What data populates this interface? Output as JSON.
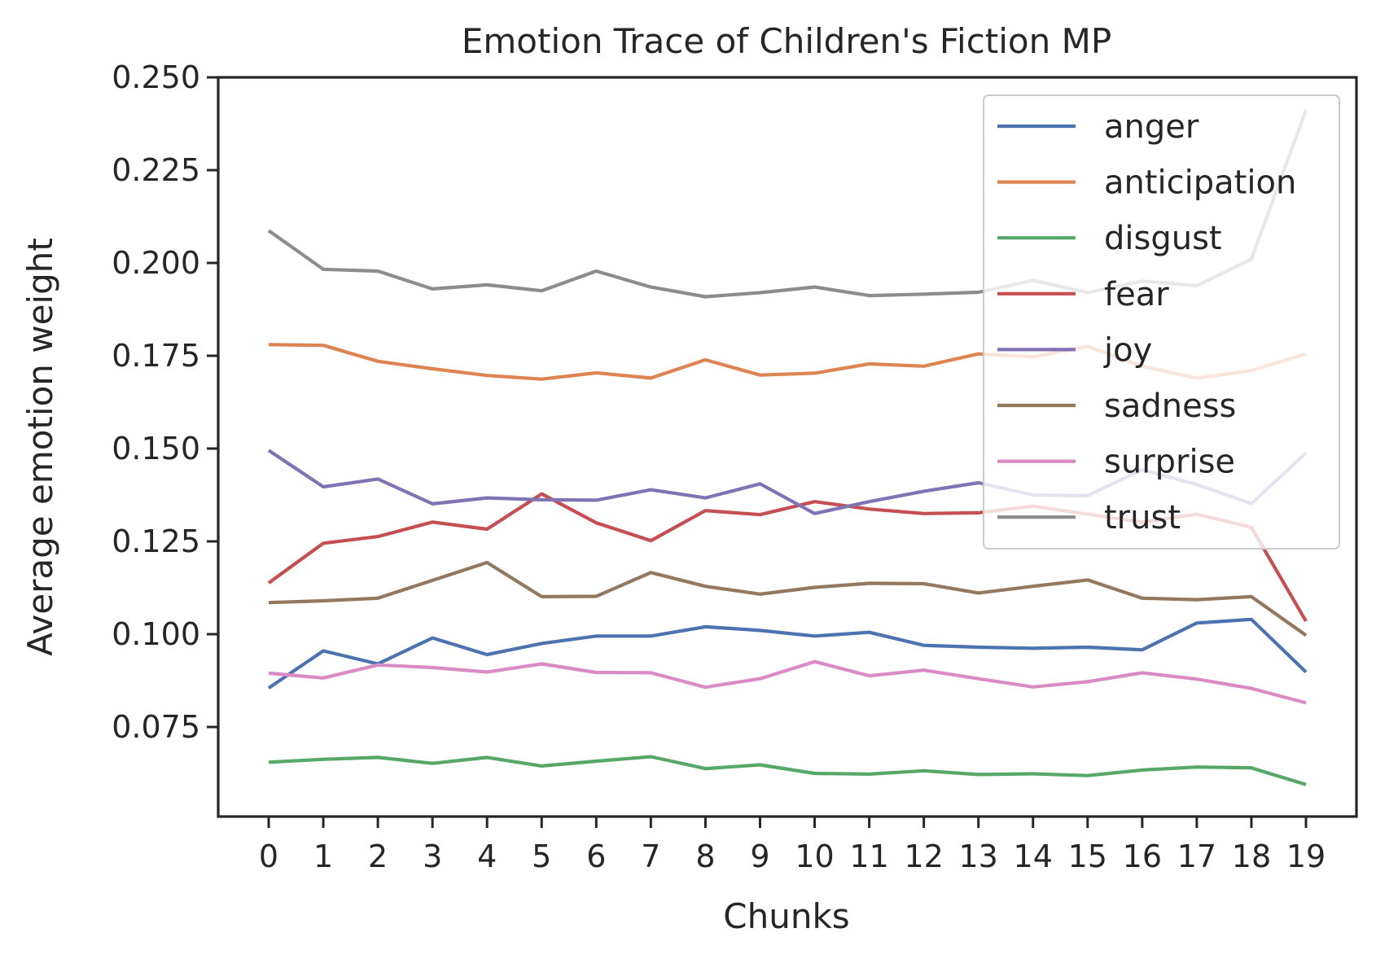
{
  "chart_data": {
    "type": "line",
    "title": "Emotion Trace of Children's Fiction MP",
    "xlabel": "Chunks",
    "ylabel": "Average emotion weight",
    "x": [
      0,
      1,
      2,
      3,
      4,
      5,
      6,
      7,
      8,
      9,
      10,
      11,
      12,
      13,
      14,
      15,
      16,
      17,
      18,
      19
    ],
    "x_ticks": [
      "0",
      "1",
      "2",
      "3",
      "4",
      "5",
      "6",
      "7",
      "8",
      "9",
      "10",
      "11",
      "12",
      "13",
      "14",
      "15",
      "16",
      "17",
      "18",
      "19"
    ],
    "ylim": [
      0.055,
      0.25
    ],
    "y_ticks": [
      "0.075",
      "0.100",
      "0.125",
      "0.150",
      "0.175",
      "0.200",
      "0.225",
      "0.250"
    ],
    "legend_position": "upper right",
    "series": [
      {
        "name": "anger",
        "color": "#4c72b0",
        "values": [
          0.0855,
          0.0955,
          0.092,
          0.099,
          0.0945,
          0.0975,
          0.0995,
          0.0995,
          0.102,
          0.101,
          0.0995,
          0.1005,
          0.097,
          0.0965,
          0.0962,
          0.0965,
          0.0958,
          0.103,
          0.104,
          0.0898
        ]
      },
      {
        "name": "anticipation",
        "color": "#dd8452",
        "values": [
          0.178,
          0.1778,
          0.1735,
          0.1715,
          0.1697,
          0.1687,
          0.1704,
          0.169,
          0.1739,
          0.1698,
          0.1703,
          0.1728,
          0.1722,
          0.1755,
          0.1747,
          0.1775,
          0.1722,
          0.169,
          0.171,
          0.1755
        ]
      },
      {
        "name": "disgust",
        "color": "#55a868",
        "values": [
          0.0655,
          0.0663,
          0.0668,
          0.0652,
          0.0668,
          0.0645,
          0.0658,
          0.067,
          0.0638,
          0.0648,
          0.0625,
          0.0623,
          0.0632,
          0.0622,
          0.0624,
          0.0619,
          0.0634,
          0.0642,
          0.064,
          0.0595
        ]
      },
      {
        "name": "fear",
        "color": "#c44e52",
        "values": [
          0.1138,
          0.1245,
          0.1263,
          0.1302,
          0.1283,
          0.1378,
          0.13,
          0.1252,
          0.1333,
          0.1322,
          0.1357,
          0.1337,
          0.1325,
          0.1327,
          0.1345,
          0.1323,
          0.1302,
          0.1323,
          0.1288,
          0.1035
        ]
      },
      {
        "name": "joy",
        "color": "#8172b3",
        "values": [
          0.1495,
          0.1397,
          0.1418,
          0.1351,
          0.1367,
          0.1362,
          0.1361,
          0.1389,
          0.1367,
          0.1405,
          0.1325,
          0.1357,
          0.1385,
          0.1408,
          0.1375,
          0.1373,
          0.1443,
          0.1403,
          0.1352,
          0.1488
        ]
      },
      {
        "name": "sadness",
        "color": "#937860",
        "values": [
          0.1085,
          0.109,
          0.1097,
          0.1145,
          0.1193,
          0.1101,
          0.1102,
          0.1166,
          0.1129,
          0.1108,
          0.1126,
          0.1137,
          0.1136,
          0.1111,
          0.1129,
          0.1146,
          0.1097,
          0.1093,
          0.1101,
          0.0997
        ]
      },
      {
        "name": "surprise",
        "color": "#da8bc3",
        "values": [
          0.0895,
          0.0882,
          0.0917,
          0.091,
          0.0898,
          0.092,
          0.0897,
          0.0896,
          0.0857,
          0.088,
          0.0926,
          0.0888,
          0.0903,
          0.088,
          0.0858,
          0.0872,
          0.0896,
          0.0879,
          0.0854,
          0.0815
        ]
      },
      {
        "name": "trust",
        "color": "#8c8c8c",
        "values": [
          0.2087,
          0.1983,
          0.1978,
          0.193,
          0.1941,
          0.1925,
          0.1978,
          0.1935,
          0.1909,
          0.192,
          0.1935,
          0.1912,
          0.1916,
          0.1921,
          0.1953,
          0.192,
          0.1951,
          0.1939,
          0.201,
          0.2412
        ]
      }
    ]
  }
}
